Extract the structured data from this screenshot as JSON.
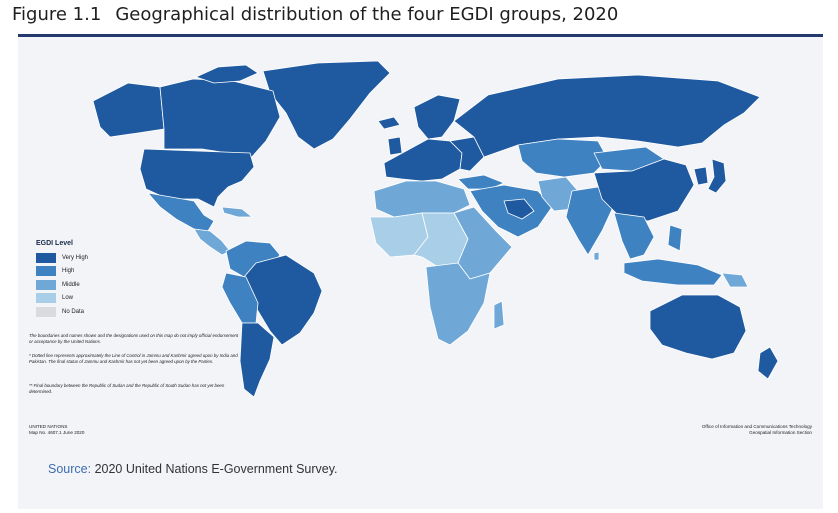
{
  "figure": {
    "number": "Figure 1.1",
    "title": "Geographical distribution of the four EGDI groups, 2020"
  },
  "colors": {
    "very_high": "#1f5aa0",
    "high": "#3f82c2",
    "middle": "#6fa7d6",
    "low": "#a9cfe8",
    "no_data": "#d9dbdd",
    "ocean": "#ffffff",
    "border": "#ffffff",
    "rule": "#223a6e",
    "source_label": "#3f6cb0"
  },
  "legend": {
    "title": "EGDI Level",
    "items": [
      {
        "label": "Very High",
        "color": "#1f5aa0"
      },
      {
        "label": "High",
        "color": "#3f82c2"
      },
      {
        "label": "Middle",
        "color": "#6fa7d6"
      },
      {
        "label": "Low",
        "color": "#a9cfe8"
      },
      {
        "label": "No Data",
        "color": "#d9dbdd"
      }
    ]
  },
  "disclaimers": [
    "The boundaries and names shown and the designations used on this map do not imply official endorsement or acceptance by the United Nations.",
    "* Dotted line represents approximately the Line of Control in Jammu and Kashmir agreed upon by India and Pakistan. The final status of Jammu and Kashmir has not yet been agreed upon by the Parties.",
    "** Final boundary between the Republic of Sudan and the Republic of South Sudan has not yet been determined."
  ],
  "credits": {
    "un_line1": "UNITED NATIONS",
    "un_line2": "Map No. 4607.1  June 2020",
    "ict_line1": "Office of Information and Communications Technology",
    "ict_line2": "Geospatial Information Section"
  },
  "source": {
    "label": "Source:",
    "text": "2020 United Nations E-Government Survey."
  }
}
